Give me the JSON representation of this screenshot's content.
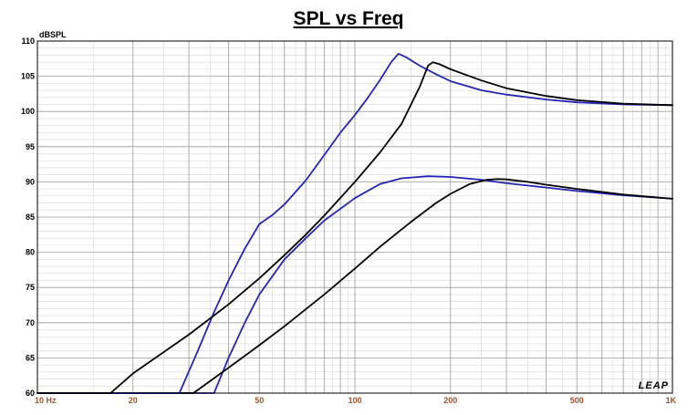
{
  "chart_data": {
    "type": "line",
    "title": "SPL vs Freq",
    "ylabel": "dBSPL",
    "xlabel": "",
    "x_scale": "log",
    "xlim": [
      10,
      1000
    ],
    "ylim": [
      60,
      110
    ],
    "grid": true,
    "y_ticks": [
      "60",
      "65",
      "70",
      "75",
      "80",
      "85",
      "90",
      "95",
      "100",
      "105",
      "110"
    ],
    "x_ticks": [
      {
        "value": 10,
        "label": "10 Hz"
      },
      {
        "value": 20,
        "label": "20"
      },
      {
        "value": 50,
        "label": "50"
      },
      {
        "value": 100,
        "label": "100"
      },
      {
        "value": 200,
        "label": "200"
      },
      {
        "value": 500,
        "label": "500"
      },
      {
        "value": 1000,
        "label": "1K"
      }
    ],
    "logo": "LEAP",
    "colors": {
      "blue": "#2525b5",
      "black": "#000000"
    },
    "series": [
      {
        "color": "#2525b5",
        "points": [
          [
            10,
            60
          ],
          [
            36,
            60
          ],
          [
            40,
            65
          ],
          [
            45,
            70
          ],
          [
            50,
            74
          ],
          [
            60,
            79
          ],
          [
            70,
            82
          ],
          [
            80,
            84.5
          ],
          [
            100,
            87.7
          ],
          [
            120,
            89.7
          ],
          [
            140,
            90.5
          ],
          [
            170,
            90.8
          ],
          [
            200,
            90.7
          ],
          [
            250,
            90.3
          ],
          [
            300,
            89.8
          ],
          [
            400,
            89.2
          ],
          [
            500,
            88.7
          ],
          [
            700,
            88.1
          ],
          [
            1000,
            87.6
          ]
        ]
      },
      {
        "color": "#000000",
        "points": [
          [
            10,
            60
          ],
          [
            31,
            60
          ],
          [
            40,
            63.6
          ],
          [
            50,
            66.8
          ],
          [
            60,
            69.5
          ],
          [
            70,
            71.9
          ],
          [
            80,
            74
          ],
          [
            100,
            77.7
          ],
          [
            120,
            80.8
          ],
          [
            150,
            84.3
          ],
          [
            180,
            87
          ],
          [
            200,
            88.3
          ],
          [
            230,
            89.7
          ],
          [
            260,
            90.3
          ],
          [
            280,
            90.4
          ],
          [
            300,
            90.35
          ],
          [
            350,
            90
          ],
          [
            400,
            89.6
          ],
          [
            500,
            89
          ],
          [
            700,
            88.2
          ],
          [
            1000,
            87.6
          ]
        ]
      },
      {
        "color": "#2525b5",
        "points": [
          [
            10,
            60
          ],
          [
            28,
            60
          ],
          [
            32,
            66
          ],
          [
            36,
            71.5
          ],
          [
            40,
            76
          ],
          [
            45,
            80.5
          ],
          [
            50,
            84
          ],
          [
            55,
            85.3
          ],
          [
            60,
            86.8
          ],
          [
            70,
            90.2
          ],
          [
            80,
            93.8
          ],
          [
            90,
            97
          ],
          [
            100,
            99.5
          ],
          [
            110,
            102
          ],
          [
            120,
            104.5
          ],
          [
            130,
            107
          ],
          [
            137,
            108.2
          ],
          [
            145,
            107.7
          ],
          [
            160,
            106.5
          ],
          [
            180,
            105.3
          ],
          [
            200,
            104.3
          ],
          [
            250,
            103
          ],
          [
            300,
            102.4
          ],
          [
            400,
            101.7
          ],
          [
            500,
            101.3
          ],
          [
            700,
            101
          ],
          [
            1000,
            100.9
          ]
        ]
      },
      {
        "color": "#000000",
        "points": [
          [
            10,
            60
          ],
          [
            17,
            60
          ],
          [
            20,
            62.8
          ],
          [
            30,
            68.3
          ],
          [
            40,
            72.6
          ],
          [
            50,
            76.3
          ],
          [
            60,
            79.6
          ],
          [
            70,
            82.5
          ],
          [
            80,
            85.2
          ],
          [
            100,
            90
          ],
          [
            120,
            94.2
          ],
          [
            140,
            98.2
          ],
          [
            160,
            103.5
          ],
          [
            170,
            106.5
          ],
          [
            176,
            107
          ],
          [
            185,
            106.7
          ],
          [
            200,
            106
          ],
          [
            250,
            104.4
          ],
          [
            300,
            103.3
          ],
          [
            400,
            102.2
          ],
          [
            500,
            101.6
          ],
          [
            700,
            101.1
          ],
          [
            1000,
            100.9
          ]
        ]
      }
    ]
  }
}
